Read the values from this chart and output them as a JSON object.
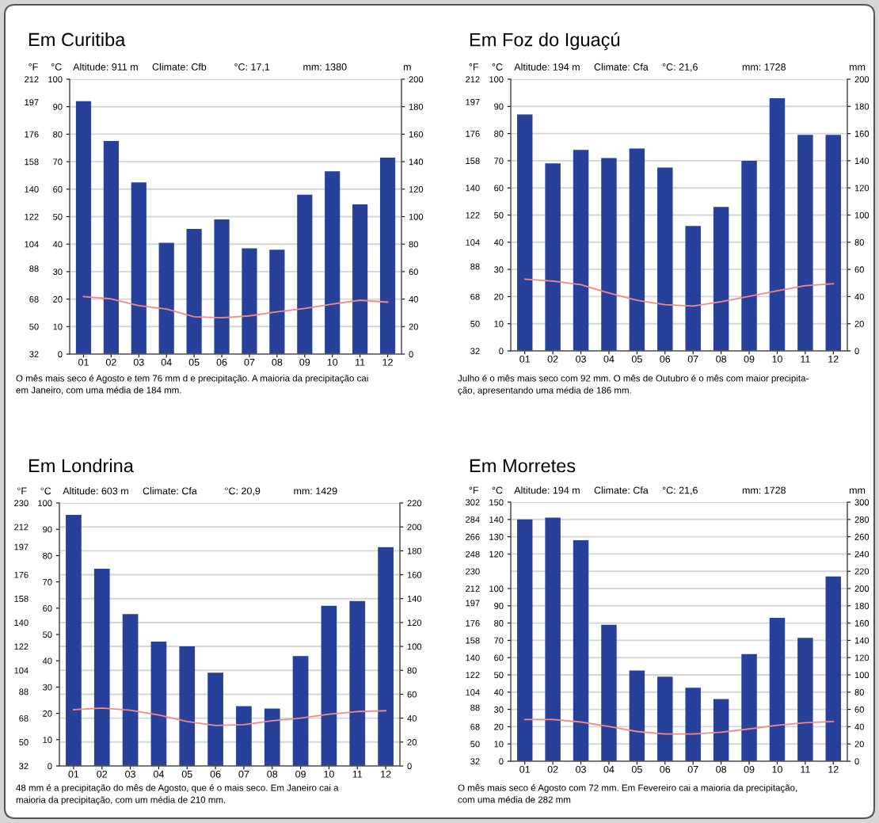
{
  "chart_data": [
    {
      "type": "bar",
      "title": "Em Curitiba",
      "subtitle": "Altitude: 911 m     Climate: Cfb          °C: 17,1            mm: 1380",
      "categories": [
        "01",
        "02",
        "03",
        "04",
        "05",
        "06",
        "07",
        "08",
        "09",
        "10",
        "11",
        "12"
      ],
      "series": [
        {
          "axis": "y2",
          "color": "#27409a",
          "values": [
            184,
            155,
            125,
            81,
            91,
            98,
            77,
            76,
            116,
            133,
            109,
            143
          ]
        },
        {
          "type": "line",
          "axis": "y",
          "color": "#f08a8a",
          "values": [
            20.9,
            20.1,
            17.6,
            16.4,
            13.6,
            13.2,
            13.9,
            15.4,
            16.6,
            18.2,
            19.6,
            18.9
          ]
        }
      ],
      "ylabel": "°C",
      "y2label": "m",
      "y3label": "°F",
      "ylim": [
        0,
        100
      ],
      "yticks": [
        0,
        10,
        20,
        30,
        40,
        50,
        60,
        70,
        80,
        90,
        100
      ],
      "y2lim": [
        0,
        200
      ],
      "y2ticks": [
        0,
        20,
        40,
        60,
        80,
        100,
        120,
        140,
        160,
        180,
        200
      ],
      "y3lim": [
        32,
        212
      ],
      "y3ticks": [
        32,
        50,
        68,
        88,
        104,
        122,
        140,
        158,
        176,
        197,
        212
      ],
      "grid": "y",
      "annotations": [
        "O mês mais seco é Agosto e tem 76 mm d e precipitação. A maioria da precipitação cai\nem Janeiro, com uma média de 184 mm."
      ]
    },
    {
      "type": "bar",
      "title": "Em Foz do Iguaçú",
      "subtitle": "Altitude: 194 m     Climate: Cfa     °C: 21,6                mm: 1728",
      "categories": [
        "01",
        "02",
        "03",
        "04",
        "05",
        "06",
        "07",
        "08",
        "09",
        "10",
        "11",
        "12"
      ],
      "series": [
        {
          "axis": "y2",
          "color": "#27409a",
          "values": [
            174,
            138,
            148,
            142,
            149,
            135,
            92,
            106,
            140,
            186,
            159,
            159
          ]
        },
        {
          "type": "line",
          "axis": "y",
          "color": "#f08a8a",
          "values": [
            26.4,
            25.7,
            24.4,
            21.3,
            18.6,
            17.0,
            16.5,
            18.1,
            20.1,
            22.1,
            24.0,
            24.7
          ]
        }
      ],
      "ylabel": "°C",
      "y2label": "mm",
      "y3label": "°F",
      "ylim": [
        0,
        100
      ],
      "yticks": [
        0,
        10,
        20,
        30,
        40,
        50,
        60,
        70,
        80,
        90,
        100
      ],
      "y2lim": [
        0,
        200
      ],
      "y2ticks": [
        0,
        20,
        40,
        60,
        80,
        100,
        120,
        140,
        160,
        180,
        200
      ],
      "y3lim": [
        32,
        212
      ],
      "y3ticks": [
        32,
        50,
        68,
        88,
        104,
        122,
        140,
        158,
        176,
        197,
        212
      ],
      "grid": "y",
      "annotations": [
        "Julho é o mês mais seco com 92 mm. O mês de Outubro é o mês com maior precipita-\nção, apresentando uma média de 186 mm."
      ]
    },
    {
      "type": "bar",
      "title": "Em Londrina",
      "subtitle": "Altitude: 603 m     Climate: Cfa          °C: 20,9            mm: 1429",
      "categories": [
        "01",
        "02",
        "03",
        "04",
        "05",
        "06",
        "07",
        "08",
        "09",
        "10",
        "11",
        "12"
      ],
      "series": [
        {
          "axis": "y2",
          "color": "#27409a",
          "values": [
            210,
            165,
            127,
            104,
            100,
            78,
            50,
            48,
            92,
            134,
            138,
            183
          ]
        },
        {
          "type": "line",
          "axis": "y",
          "color": "#f08a8a",
          "values": [
            21.4,
            22.0,
            21.2,
            19.4,
            16.9,
            15.4,
            15.7,
            17.2,
            18.2,
            19.7,
            20.7,
            21.0
          ]
        }
      ],
      "ylabel": "°C",
      "y3label": "°F",
      "ylim": [
        0,
        100
      ],
      "yticks": [
        0,
        10,
        20,
        30,
        40,
        50,
        60,
        70,
        80,
        90,
        100
      ],
      "y2lim": [
        0,
        220
      ],
      "y2ticks": [
        0,
        20,
        40,
        60,
        80,
        100,
        120,
        140,
        160,
        180,
        200,
        220
      ],
      "y3lim": [
        32,
        230
      ],
      "y3ticks": [
        32,
        50,
        68,
        88,
        104,
        122,
        140,
        158,
        176,
        197,
        212,
        230
      ],
      "grid": "y",
      "annotations": [
        "48 mm é a precipitação do mês de Agosto, que é o mais seco. Em Janeiro cai a\nmaioria da precipitação, com um média de 210 mm."
      ]
    },
    {
      "type": "bar",
      "title": "Em Morretes",
      "subtitle": "Altitude: 194 m     Climate: Cfa     °C: 21,6                mm: 1728",
      "categories": [
        "01",
        "02",
        "03",
        "04",
        "05",
        "06",
        "07",
        "08",
        "09",
        "10",
        "11",
        "12"
      ],
      "series": [
        {
          "axis": "y2",
          "color": "#27409a",
          "values": [
            280,
            282,
            256,
            158,
            105,
            98,
            85,
            72,
            124,
            166,
            143,
            214
          ]
        },
        {
          "type": "line",
          "axis": "y",
          "color": "#f08a8a",
          "values": [
            24.1,
            24.1,
            22.7,
            20.1,
            17.2,
            15.8,
            15.8,
            16.8,
            18.7,
            20.8,
            22.3,
            23.0
          ]
        }
      ],
      "ylabel": "°C",
      "y2label": "mm",
      "y3label": "°F",
      "ylim": [
        0,
        150
      ],
      "yticks": [
        0,
        10,
        20,
        30,
        40,
        50,
        60,
        70,
        80,
        90,
        100,
        120,
        130,
        140,
        150
      ],
      "y2lim": [
        0,
        300
      ],
      "y2ticks": [
        0,
        20,
        40,
        60,
        80,
        100,
        120,
        140,
        160,
        180,
        200,
        220,
        240,
        260,
        280,
        300
      ],
      "y3lim": [
        32,
        302
      ],
      "y3ticks": [
        32,
        50,
        68,
        88,
        104,
        122,
        140,
        158,
        176,
        197,
        212,
        230,
        248,
        266,
        284,
        302
      ],
      "grid": "y",
      "annotations": [
        "O mês mais seco é Agosto com 72 mm. Em Fevereiro cai a maioria da precipitação,\ncom uma média de 282 mm"
      ]
    }
  ]
}
